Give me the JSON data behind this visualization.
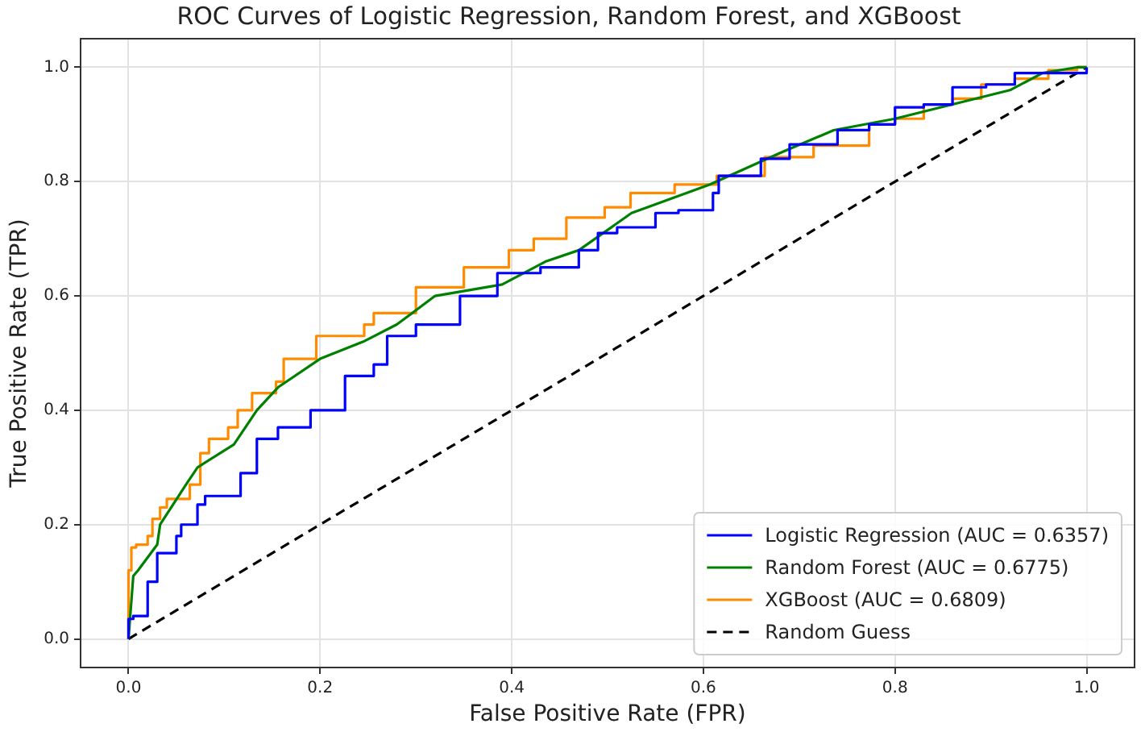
{
  "chart_data": {
    "type": "line",
    "title": "ROC Curves of Logistic Regression, Random Forest, and XGBoost",
    "xlabel": "False Positive Rate (FPR)",
    "ylabel": "True Positive Rate (TPR)",
    "xlim": [
      -0.05,
      1.05
    ],
    "ylim": [
      -0.05,
      1.05
    ],
    "xticks": [
      {
        "value": 0,
        "label": "0.0"
      },
      {
        "value": 0.2,
        "label": "0.2"
      },
      {
        "value": 0.4,
        "label": "0.4"
      },
      {
        "value": 0.6,
        "label": "0.6"
      },
      {
        "value": 0.8,
        "label": "0.8"
      },
      {
        "value": 1,
        "label": "1.0"
      }
    ],
    "yticks": [
      {
        "value": 0,
        "label": "0.0"
      },
      {
        "value": 0.2,
        "label": "0.2"
      },
      {
        "value": 0.4,
        "label": "0.4"
      },
      {
        "value": 0.6,
        "label": "0.6"
      },
      {
        "value": 0.8,
        "label": "0.8"
      },
      {
        "value": 1,
        "label": "1.0"
      }
    ],
    "grid": true,
    "legend": "bottom right",
    "series": [
      {
        "name": "Logistic Regression (AUC = 0.6357)",
        "color": "#0000ff",
        "type": "step",
        "x": [
          0,
          0,
          0.005,
          0.02,
          0.03,
          0.05,
          0.055,
          0.072,
          0.08,
          0.117,
          0.134,
          0.156,
          0.19,
          0.196,
          0.226,
          0.256,
          0.27,
          0.3,
          0.346,
          0.385,
          0.43,
          0.47,
          0.49,
          0.51,
          0.55,
          0.574,
          0.61,
          0.616,
          0.66,
          0.69,
          0.74,
          0.773,
          0.8,
          0.83,
          0.86,
          0.895,
          0.925,
          0.96,
          1.0,
          1.0
        ],
        "values": [
          0,
          0.01,
          0.035,
          0.04,
          0.1,
          0.15,
          0.18,
          0.2,
          0.235,
          0.25,
          0.29,
          0.35,
          0.37,
          0.4,
          0.4,
          0.46,
          0.48,
          0.53,
          0.55,
          0.6,
          0.64,
          0.65,
          0.68,
          0.71,
          0.72,
          0.745,
          0.75,
          0.78,
          0.81,
          0.84,
          0.865,
          0.89,
          0.9,
          0.93,
          0.935,
          0.965,
          0.97,
          0.99,
          0.99,
          1.0
        ]
      },
      {
        "name": "Random Forest (AUC = 0.6775)",
        "color": "#008000",
        "x": [
          0,
          0.005,
          0.01,
          0.03,
          0.033,
          0.06,
          0.072,
          0.11,
          0.134,
          0.156,
          0.2,
          0.245,
          0.28,
          0.32,
          0.39,
          0.435,
          0.47,
          0.525,
          0.607,
          0.68,
          0.736,
          0.8,
          0.86,
          0.92,
          0.954,
          0.99,
          1.0
        ],
        "values": [
          0,
          0.11,
          0.12,
          0.165,
          0.2,
          0.27,
          0.3,
          0.34,
          0.4,
          0.44,
          0.49,
          0.52,
          0.55,
          0.6,
          0.62,
          0.66,
          0.68,
          0.745,
          0.795,
          0.85,
          0.89,
          0.91,
          0.935,
          0.96,
          0.99,
          1.0,
          1.0
        ]
      },
      {
        "name": "XGBoost (AUC = 0.6809)",
        "color": "#ff8c00",
        "type": "step",
        "x": [
          0,
          0,
          0.003,
          0.008,
          0.02,
          0.025,
          0.033,
          0.04,
          0.064,
          0.075,
          0.084,
          0.104,
          0.114,
          0.129,
          0.154,
          0.162,
          0.196,
          0.246,
          0.256,
          0.3,
          0.35,
          0.397,
          0.423,
          0.457,
          0.497,
          0.524,
          0.57,
          0.614,
          0.664,
          0.715,
          0.773,
          0.8,
          0.83,
          0.86,
          0.89,
          0.925,
          0.96,
          0.99,
          1.0
        ],
        "values": [
          0,
          0.05,
          0.12,
          0.16,
          0.165,
          0.18,
          0.21,
          0.23,
          0.245,
          0.27,
          0.325,
          0.35,
          0.37,
          0.4,
          0.43,
          0.45,
          0.49,
          0.53,
          0.55,
          0.57,
          0.615,
          0.65,
          0.68,
          0.7,
          0.737,
          0.755,
          0.78,
          0.795,
          0.81,
          0.843,
          0.863,
          0.9,
          0.91,
          0.935,
          0.945,
          0.97,
          0.98,
          0.995,
          1.0
        ]
      },
      {
        "name": "Random Guess",
        "color": "#000000",
        "line_style": "dashed",
        "x": [
          0,
          1
        ],
        "values": [
          0,
          1
        ]
      }
    ]
  }
}
